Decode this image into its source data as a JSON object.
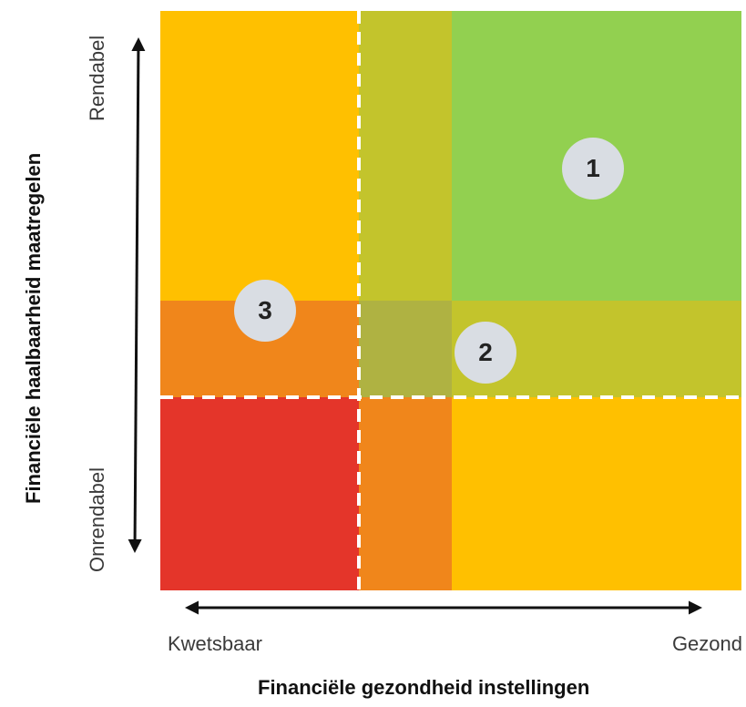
{
  "diagram": {
    "colors": {
      "top_left": "#FFC000",
      "top_mid": "#C3C42C",
      "top_right": "#92D050",
      "band_left": "#F0861B",
      "band_mid": "#AFB242",
      "band_right": "#C3C42C",
      "bottom_left": "#E4352A",
      "bottom_mid": "#F0861B",
      "bottom_right": "#FFC000",
      "badge_fill": "#D9DDE3",
      "dashed_line": "#FFFFFF",
      "axis_arrow": "#111111"
    },
    "badges": [
      "1",
      "2",
      "3"
    ],
    "axes": {
      "x_low_label": "Kwetsbaar",
      "x_high_label": "Gezond",
      "x_title": "Financiële gezondheid instellingen",
      "y_low_label": "Onrendabel",
      "y_high_label": "Rendabel",
      "y_title": "Financiële haalbaarheid maatregelen"
    }
  }
}
